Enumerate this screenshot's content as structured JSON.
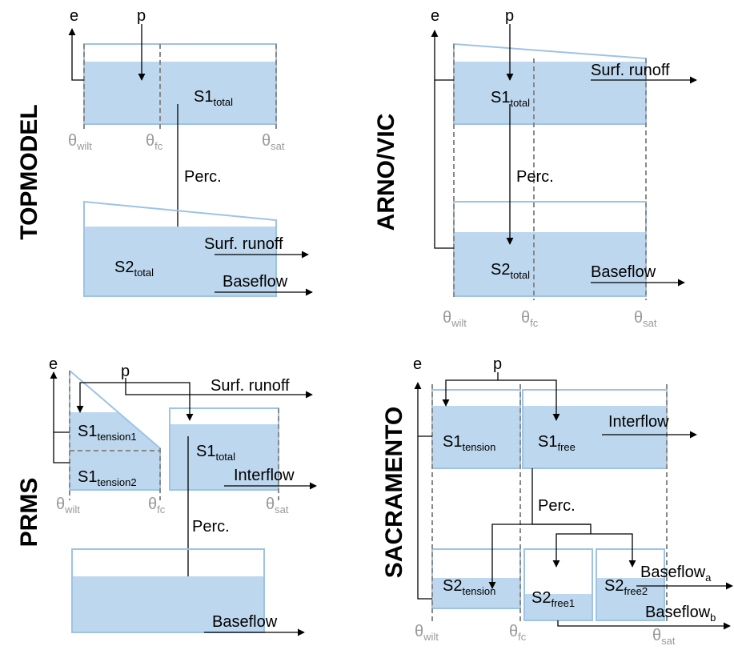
{
  "topmodel": {
    "title": "TOPMODEL",
    "e": "e",
    "p": "p",
    "s1": [
      "S1",
      "total"
    ],
    "theta_wilt": [
      "θ",
      "wilt"
    ],
    "theta_fc": [
      "θ",
      "fc"
    ],
    "theta_sat": [
      "θ",
      "sat"
    ],
    "perc": "Perc.",
    "s2": [
      "S2",
      "total"
    ],
    "surf_runoff": "Surf. runoff",
    "baseflow": "Baseflow"
  },
  "arno_vic": {
    "title": "ARNO/VIC",
    "e": "e",
    "p": "p",
    "s1": [
      "S1",
      "total"
    ],
    "surf_runoff": "Surf. runoff",
    "perc": "Perc.",
    "s2": [
      "S2",
      "total"
    ],
    "baseflow": "Baseflow",
    "theta_wilt": [
      "θ",
      "wilt"
    ],
    "theta_fc": [
      "θ",
      "fc"
    ],
    "theta_sat": [
      "θ",
      "sat"
    ]
  },
  "prms": {
    "title": "PRMS",
    "e": "e",
    "p": "p",
    "surf_runoff": "Surf. runoff",
    "s1_tension1": [
      "S1",
      "tension1"
    ],
    "s1_tension2": [
      "S1",
      "tension2"
    ],
    "s1": [
      "S1",
      "total"
    ],
    "interflow": "Interflow",
    "theta_wilt": [
      "θ",
      "wilt"
    ],
    "theta_fc": [
      "θ",
      "fc"
    ],
    "theta_sat": [
      "θ",
      "sat"
    ],
    "perc": "Perc.",
    "baseflow": "Baseflow"
  },
  "sacramento": {
    "title": "SACRAMENTO",
    "e": "e",
    "p": "p",
    "s1_tension": [
      "S1",
      "tension"
    ],
    "s1_free": [
      "S1",
      "free"
    ],
    "interflow": "Interflow",
    "perc": "Perc.",
    "s2_tension": [
      "S2",
      "tension"
    ],
    "s2_free1": [
      "S2",
      "free1"
    ],
    "s2_free2": [
      "S2",
      "free2"
    ],
    "baseflow_a": [
      "Baseflow",
      "a"
    ],
    "baseflow_b": [
      "Baseflow",
      "b"
    ],
    "theta_wilt": [
      "θ",
      "wilt"
    ],
    "theta_fc": [
      "θ",
      "fc"
    ],
    "theta_sat": [
      "θ",
      "sat"
    ]
  }
}
